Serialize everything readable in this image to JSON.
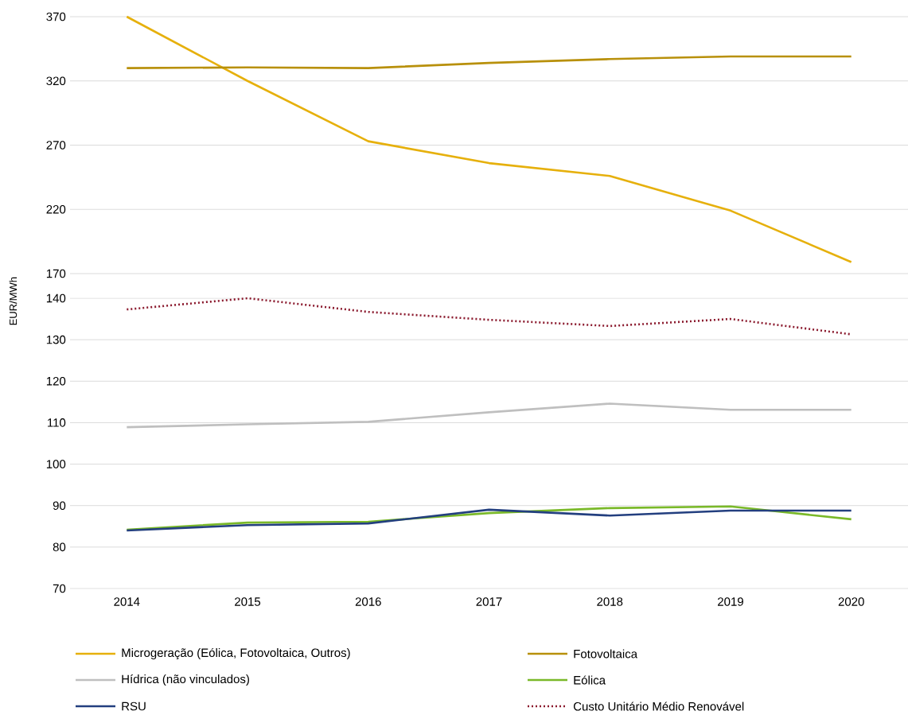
{
  "chart_data": [
    {
      "type": "line",
      "categories": [
        "2014",
        "2015",
        "2016",
        "2017",
        "2018",
        "2019",
        "2020"
      ],
      "ylim": [
        170,
        370
      ],
      "yticks": [
        170,
        220,
        270,
        320,
        370
      ],
      "grid": "y",
      "legend": "bottom",
      "tick_labels": "y",
      "line_style": "solid",
      "marker": "none",
      "series": [
        {
          "name": "Microgeração (Eólica, Fotovoltaica, Outros)",
          "color": "#e6b00c",
          "values": [
            370,
            320,
            273,
            256,
            246,
            219,
            179
          ]
        },
        {
          "name": "Fotovoltaica",
          "color": "#b8900b",
          "values": [
            330,
            330.5,
            330,
            334,
            337,
            339,
            339
          ]
        }
      ]
    },
    {
      "type": "line",
      "categories": [
        "2014",
        "2015",
        "2016",
        "2017",
        "2018",
        "2019",
        "2020"
      ],
      "ylim": [
        70,
        140
      ],
      "yticks": [
        70,
        80,
        90,
        100,
        110,
        120,
        130,
        140
      ],
      "grid": "y",
      "legend": "bottom",
      "ylabel": "EUR/MWh",
      "marker": "none",
      "series": [
        {
          "name": "Hídrica (não vinculados)",
          "color": "#bfbfbf",
          "values": [
            108.9,
            109.6,
            110.2,
            112.5,
            114.6,
            113.1,
            113.1
          ],
          "line_style": "solid"
        },
        {
          "name": "Eólica",
          "color": "#7ab929",
          "values": [
            84.2,
            85.9,
            86.1,
            88.2,
            89.4,
            89.8,
            86.7
          ],
          "line_style": "solid"
        },
        {
          "name": "RSU",
          "color": "#233f7f",
          "values": [
            84,
            85.3,
            85.7,
            89,
            87.6,
            88.8,
            88.8
          ],
          "line_style": "solid"
        },
        {
          "name": "Custo Unitário Médio Renovável",
          "color": "#8b1a2e",
          "values": [
            137.3,
            140,
            136.7,
            134.8,
            133.3,
            135,
            131.3
          ],
          "line_style": "dotted"
        }
      ]
    }
  ]
}
